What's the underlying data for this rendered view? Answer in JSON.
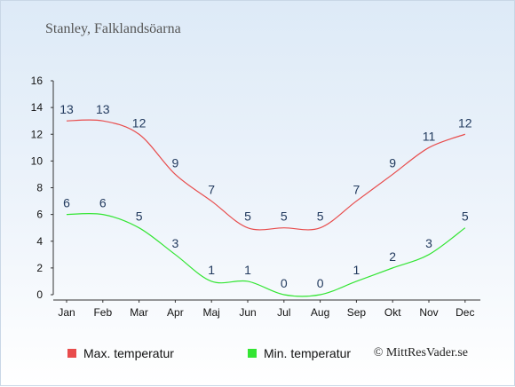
{
  "title": "Stanley, Falklandsöarna",
  "copyright": "© MittResVader.se",
  "colors": {
    "max": "#e84c4c",
    "min": "#33e533",
    "axis": "#333333",
    "label": "#223a5e"
  },
  "chart_data": {
    "type": "line",
    "categories": [
      "Jan",
      "Feb",
      "Mar",
      "Apr",
      "Maj",
      "Jun",
      "Jul",
      "Aug",
      "Sep",
      "Okt",
      "Nov",
      "Dec"
    ],
    "ylim": [
      0,
      16
    ],
    "yticks": [
      0,
      2,
      4,
      6,
      8,
      10,
      12,
      14,
      16
    ],
    "grid": false,
    "series": [
      {
        "name": "Max. temperatur",
        "values": [
          13,
          13,
          12,
          9,
          7,
          5,
          5,
          5,
          7,
          9,
          11,
          12
        ]
      },
      {
        "name": "Min. temperatur",
        "values": [
          6,
          6,
          5,
          3,
          1,
          1,
          0,
          0,
          1,
          2,
          3,
          5
        ]
      }
    ],
    "legend_position": "bottom"
  }
}
